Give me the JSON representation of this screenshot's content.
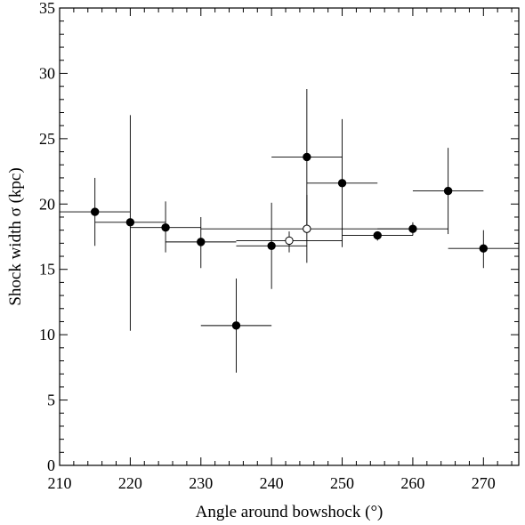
{
  "chart_data": {
    "type": "scatter",
    "title": "",
    "xlabel": "Angle around bowshock (°)",
    "ylabel": "Shock width σ (kpc)",
    "xlim": [
      210,
      275
    ],
    "ylim": [
      0,
      35
    ],
    "x_major_ticks": [
      210,
      220,
      230,
      240,
      250,
      260,
      270
    ],
    "x_minor_step": 2,
    "y_major_ticks": [
      0,
      5,
      10,
      15,
      20,
      25,
      30,
      35
    ],
    "y_minor_step": 1,
    "grid": false,
    "legend": null,
    "series": [
      {
        "marker": "filled-circle",
        "color": "#000000",
        "points": [
          {
            "x": 215,
            "y": 19.4,
            "x_lo": 210,
            "x_hi": 220,
            "y_lo": 16.8,
            "y_hi": 22.0
          },
          {
            "x": 220,
            "y": 18.6,
            "x_lo": 215,
            "x_hi": 225,
            "y_lo": 10.3,
            "y_hi": 26.8
          },
          {
            "x": 225,
            "y": 18.2,
            "x_lo": 220,
            "x_hi": 230,
            "y_lo": 16.3,
            "y_hi": 20.2
          },
          {
            "x": 230,
            "y": 17.1,
            "x_lo": 225,
            "x_hi": 235,
            "y_lo": 15.1,
            "y_hi": 19.0
          },
          {
            "x": 235,
            "y": 10.7,
            "x_lo": 230,
            "x_hi": 240,
            "y_lo": 7.1,
            "y_hi": 14.3
          },
          {
            "x": 240,
            "y": 16.8,
            "x_lo": 235,
            "x_hi": 245,
            "y_lo": 13.5,
            "y_hi": 20.1
          },
          {
            "x": 245,
            "y": 23.6,
            "x_lo": 240,
            "x_hi": 250,
            "y_lo": 18.4,
            "y_hi": 28.8
          },
          {
            "x": 250,
            "y": 21.6,
            "x_lo": 245,
            "x_hi": 255,
            "y_lo": 16.7,
            "y_hi": 26.5
          },
          {
            "x": 255,
            "y": 17.6,
            "x_lo": 250,
            "x_hi": 260,
            "y_lo": 17.2,
            "y_hi": 17.9
          },
          {
            "x": 260,
            "y": 18.1,
            "x_lo": 255,
            "x_hi": 265,
            "y_lo": 17.6,
            "y_hi": 18.6
          },
          {
            "x": 265,
            "y": 21.0,
            "x_lo": 260,
            "x_hi": 270,
            "y_lo": 17.7,
            "y_hi": 24.3
          },
          {
            "x": 270,
            "y": 16.6,
            "x_lo": 265,
            "x_hi": 275,
            "y_lo": 15.1,
            "y_hi": 18.0
          }
        ]
      },
      {
        "marker": "open-circle",
        "color": "#000000",
        "points": [
          {
            "x": 242.5,
            "y": 17.2,
            "x_lo": 235,
            "x_hi": 250,
            "y_lo": 16.3,
            "y_hi": 17.9
          },
          {
            "x": 245,
            "y": 18.1,
            "x_lo": 230,
            "x_hi": 260,
            "y_lo": 15.5,
            "y_hi": 20.7
          }
        ]
      }
    ]
  }
}
